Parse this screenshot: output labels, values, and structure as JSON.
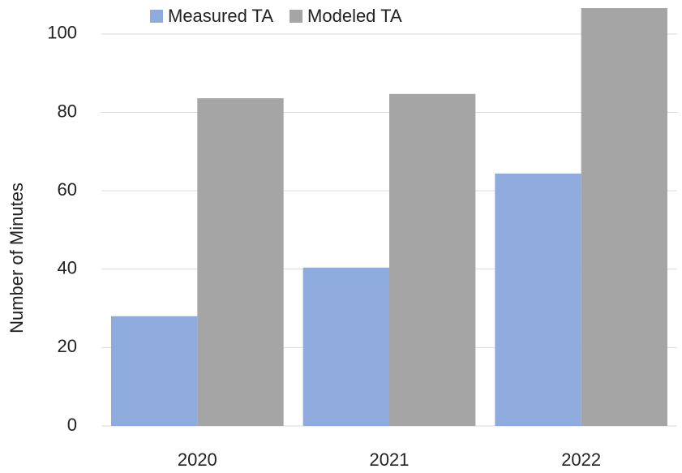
{
  "chart_data": {
    "type": "bar",
    "y_label": "Number of Minutes",
    "categories": [
      "2020",
      "2021",
      "2022"
    ],
    "series": [
      {
        "name": "Measured TA",
        "color": "#8faadc",
        "values": [
          28,
          40.4,
          64.4
        ]
      },
      {
        "name": "Modeled TA",
        "color": "#a5a5a5",
        "values": [
          83.6,
          84.7,
          106.6
        ]
      }
    ],
    "ylim": [
      0,
      106.6
    ],
    "yticks": [
      0,
      20,
      40,
      60,
      80,
      100
    ],
    "grid": true,
    "legend": "top"
  }
}
